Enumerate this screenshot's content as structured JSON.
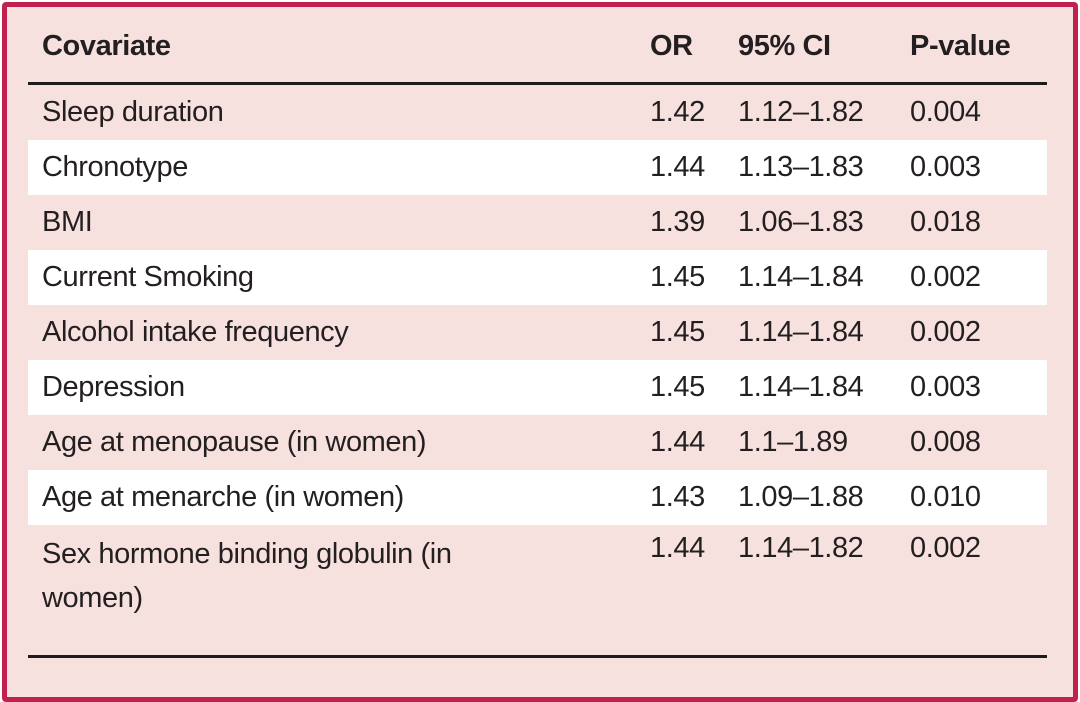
{
  "table": {
    "header": {
      "covariate": "Covariate",
      "or": "OR",
      "ci": "95% CI",
      "p": "P-value"
    },
    "rows": [
      {
        "covariate": "Sleep duration",
        "or": "1.42",
        "ci": "1.12–1.82",
        "p": "0.004"
      },
      {
        "covariate": "Chronotype",
        "or": "1.44",
        "ci": "1.13–1.83",
        "p": "0.003"
      },
      {
        "covariate": "BMI",
        "or": "1.39",
        "ci": "1.06–1.83",
        "p": "0.018"
      },
      {
        "covariate": "Current Smoking",
        "or": "1.45",
        "ci": "1.14–1.84",
        "p": "0.002"
      },
      {
        "covariate": "Alcohol intake frequency",
        "or": "1.45",
        "ci": "1.14–1.84",
        "p": "0.002"
      },
      {
        "covariate": "Depression",
        "or": "1.45",
        "ci": "1.14–1.84",
        "p": "0.003"
      },
      {
        "covariate": "Age at menopause (in women)",
        "or": "1.44",
        "ci": "1.1–1.89",
        "p": "0.008"
      },
      {
        "covariate": "Age at menarche (in women)",
        "or": "1.43",
        "ci": "1.09–1.88",
        "p": "0.010"
      },
      {
        "covariate": "Sex hormone binding globulin (in women)",
        "or": "1.44",
        "ci": "1.14–1.82",
        "p": "0.002"
      }
    ]
  },
  "colors": {
    "panel_background": "#f7e1df",
    "panel_border": "#c2204f",
    "alt_row_background": "#ffffff",
    "rule": "#1d1b1b",
    "text": "#231f20"
  }
}
